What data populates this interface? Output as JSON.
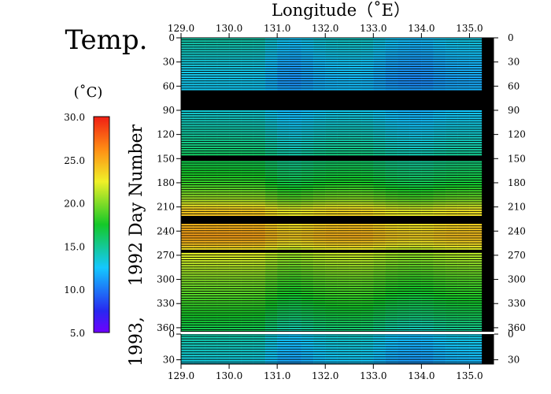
{
  "chart_data": {
    "type": "heatmap",
    "title": "Temp.",
    "xlabel": "Longitude（˚E）",
    "ylabel": "1992, 1993, Day Number",
    "ylabel_parts": [
      "1993,",
      "1992",
      "Day Number"
    ],
    "colorbar": {
      "unit": "(˚C)",
      "range": [
        5.0,
        30.0
      ],
      "ticks": [
        "30.0",
        "25.0",
        "20.0",
        "15.0",
        "10.0",
        "5.0"
      ],
      "tick_values": [
        30,
        25,
        20,
        15,
        10,
        5
      ]
    },
    "xlim": [
      129.0,
      135.5
    ],
    "x_ticks": [
      "129.0",
      "130.0",
      "131.0",
      "132.0",
      "133.0",
      "134.0",
      "135.0"
    ],
    "x_tick_values": [
      129,
      130,
      131,
      132,
      133,
      134,
      135
    ],
    "panels": [
      {
        "year": "1992",
        "ylim": [
          0,
          365
        ],
        "y_ticks": [
          "0",
          "30",
          "60",
          "90",
          "120",
          "150",
          "180",
          "210",
          "240",
          "270",
          "300",
          "330",
          "360"
        ],
        "y_tick_values": [
          0,
          30,
          60,
          90,
          120,
          150,
          180,
          210,
          240,
          270,
          300,
          330,
          360
        ],
        "no_data_days": [
          [
            64,
            88
          ],
          [
            147,
            150
          ],
          [
            221,
            226
          ],
          [
            228,
            230
          ],
          [
            263,
            266
          ]
        ],
        "no_data_lon_from": 135.25
      },
      {
        "year": "1993",
        "ylim": [
          0,
          35
        ],
        "y_ticks": [
          "0",
          "30"
        ],
        "y_tick_values": [
          0,
          30
        ],
        "no_data_lon_from": 135.25
      }
    ],
    "temperature_profile": {
      "doy": [
        0,
        15,
        30,
        45,
        60,
        90,
        120,
        150,
        180,
        200,
        212,
        222,
        235,
        245,
        255,
        265,
        280,
        300,
        330,
        365
      ],
      "base_temp": [
        14.2,
        13.6,
        13.0,
        12.6,
        12.5,
        13.3,
        14.5,
        16.2,
        18.0,
        20.5,
        23.5,
        24.0,
        24.5,
        25.2,
        24.0,
        22.0,
        21.0,
        19.6,
        18.0,
        16.0
      ],
      "lon": [
        129.0,
        130.0,
        130.7,
        131.0,
        131.4,
        132.0,
        132.8,
        133.4,
        134.0,
        134.5,
        135.25
      ],
      "lon_offset": [
        0.3,
        0.3,
        0.2,
        -1.0,
        -1.3,
        -0.4,
        -0.2,
        -1.2,
        -1.6,
        -0.9,
        -0.7
      ]
    },
    "colors": {
      "no_data": "#000000",
      "gap": "#ffffff"
    }
  }
}
